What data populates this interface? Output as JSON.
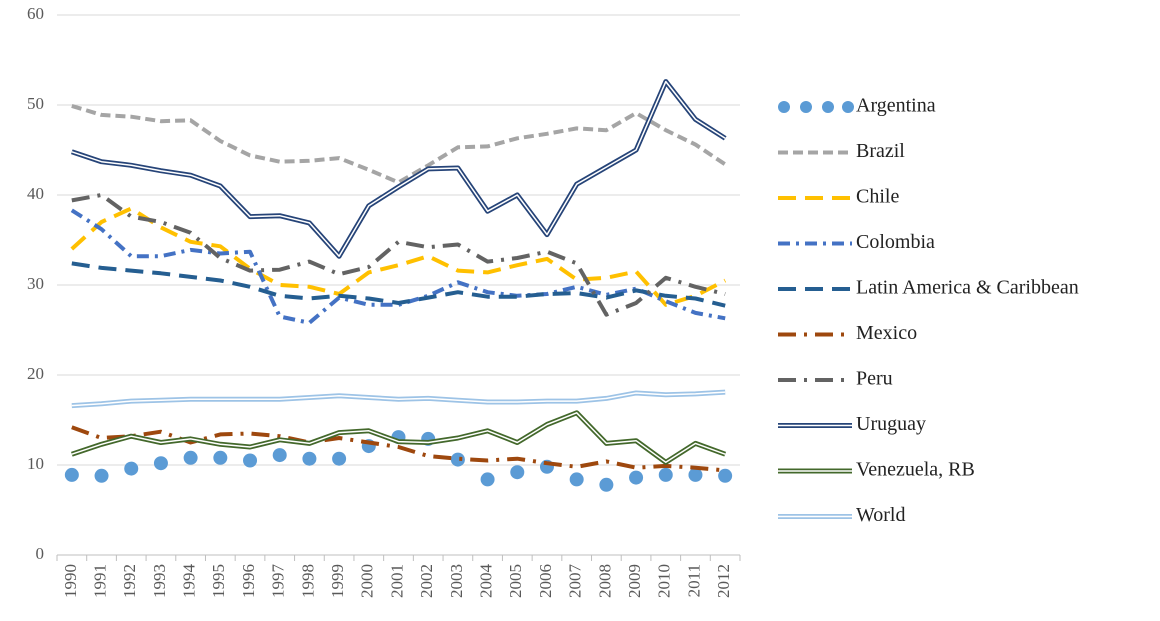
{
  "chart_data": {
    "type": "line",
    "categories": [
      "1990",
      "1991",
      "1992",
      "1993",
      "1994",
      "1995",
      "1996",
      "1997",
      "1998",
      "1999",
      "2000",
      "2001",
      "2002",
      "2003",
      "2004",
      "2005",
      "2006",
      "2007",
      "2008",
      "2009",
      "2010",
      "2011",
      "2012"
    ],
    "ylim": [
      0,
      60
    ],
    "yticks": [
      0,
      10,
      20,
      30,
      40,
      50,
      60
    ],
    "grid": true,
    "legend": "right",
    "series": [
      {
        "name": "Argentina",
        "color": "#5b9bd5",
        "style": "dots",
        "values": [
          8.9,
          8.8,
          9.6,
          10.2,
          10.8,
          10.8,
          10.5,
          11.1,
          10.7,
          10.7,
          12.1,
          13.1,
          12.9,
          10.6,
          8.4,
          9.2,
          9.8,
          8.4,
          7.8,
          8.6,
          8.9,
          8.9,
          8.8
        ]
      },
      {
        "name": "Brazil",
        "color": "#a5a5a5",
        "style": "dash",
        "values": [
          49.9,
          48.9,
          48.7,
          48.2,
          48.3,
          46.0,
          44.4,
          43.7,
          43.8,
          44.1,
          42.8,
          41.4,
          43.3,
          45.3,
          45.4,
          46.3,
          46.8,
          47.4,
          47.2,
          49.1,
          47.2,
          45.6,
          43.4
        ]
      },
      {
        "name": "Chile",
        "color": "#ffc000",
        "style": "longdash",
        "values": [
          34.0,
          37.0,
          38.5,
          36.4,
          34.8,
          34.3,
          31.8,
          30.0,
          29.8,
          29.0,
          31.4,
          32.2,
          33.2,
          31.6,
          31.4,
          32.2,
          32.9,
          30.6,
          30.8,
          31.5,
          27.8,
          28.8,
          30.5
        ]
      },
      {
        "name": "Colombia",
        "color": "#4472c4",
        "style": "dashdot",
        "values": [
          38.3,
          36.2,
          33.2,
          33.2,
          33.9,
          33.5,
          33.7,
          26.5,
          25.8,
          28.6,
          27.8,
          27.8,
          28.8,
          30.3,
          29.2,
          28.8,
          29.0,
          29.8,
          28.9,
          29.6,
          28.2,
          26.9,
          26.3
        ]
      },
      {
        "name": "Latin America & Caribbean",
        "color": "#255e91",
        "style": "longdash",
        "values": [
          32.4,
          31.9,
          31.6,
          31.3,
          30.9,
          30.5,
          29.8,
          28.8,
          28.5,
          28.8,
          28.5,
          28.0,
          28.6,
          29.2,
          28.7,
          28.7,
          29.0,
          29.1,
          28.6,
          29.4,
          28.8,
          28.5,
          27.7
        ]
      },
      {
        "name": "Mexico",
        "color": "#9e480e",
        "style": "longdashdot",
        "values": [
          14.2,
          13.0,
          13.2,
          13.7,
          12.5,
          13.4,
          13.5,
          13.2,
          12.5,
          13.0,
          12.5,
          12.0,
          11.0,
          10.7,
          10.5,
          10.7,
          10.2,
          9.8,
          10.4,
          9.7,
          9.9,
          9.7,
          9.4
        ]
      },
      {
        "name": "Peru",
        "color": "#636363",
        "style": "longdashdot",
        "values": [
          39.4,
          40.0,
          37.6,
          37.0,
          35.8,
          33.0,
          31.6,
          31.7,
          32.6,
          31.2,
          32.0,
          34.8,
          34.2,
          34.5,
          32.6,
          33.0,
          33.7,
          32.4,
          26.7,
          28.0,
          30.8,
          29.8,
          29.0
        ]
      },
      {
        "name": "Uruguay",
        "color": "#264478",
        "style": "double",
        "values": [
          44.8,
          43.7,
          43.3,
          42.7,
          42.2,
          41.0,
          37.6,
          37.7,
          36.9,
          33.2,
          38.8,
          40.9,
          42.9,
          43.0,
          38.2,
          40.0,
          35.6,
          41.2,
          43.1,
          45.0,
          52.6,
          48.4,
          46.3
        ]
      },
      {
        "name": "Venezuela, RB",
        "color": "#43682b",
        "style": "double",
        "values": [
          11.2,
          12.3,
          13.2,
          12.5,
          12.9,
          12.3,
          12.0,
          12.8,
          12.4,
          13.6,
          13.8,
          12.6,
          12.5,
          13.0,
          13.8,
          12.5,
          14.5,
          15.8,
          12.4,
          12.7,
          10.3,
          12.4,
          11.2
        ]
      },
      {
        "name": "World",
        "color": "#9dc3e6",
        "style": "double",
        "values": [
          16.6,
          16.8,
          17.1,
          17.2,
          17.3,
          17.3,
          17.3,
          17.3,
          17.5,
          17.7,
          17.5,
          17.3,
          17.4,
          17.2,
          17.0,
          17.0,
          17.1,
          17.1,
          17.4,
          18.0,
          17.8,
          17.9,
          18.1
        ]
      }
    ]
  }
}
